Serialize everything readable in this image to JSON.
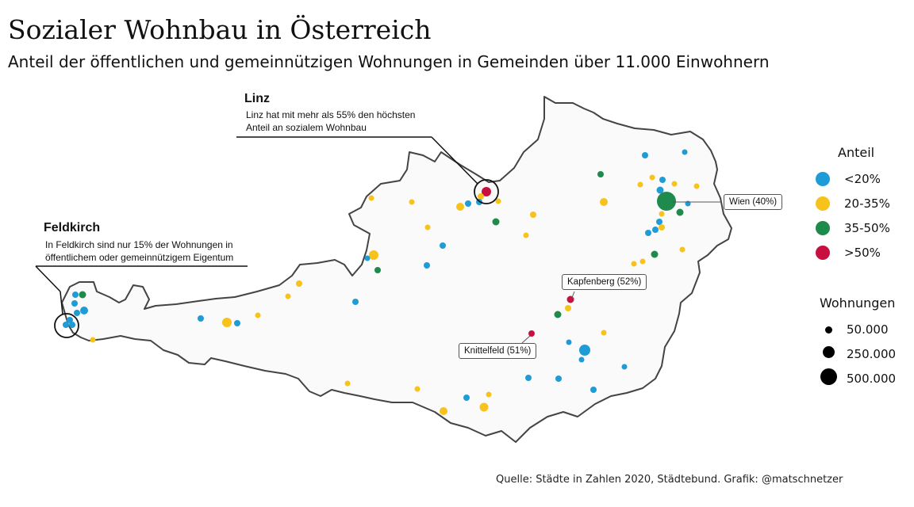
{
  "title": "Sozialer Wohnbau in Österreich",
  "subtitle": "Anteil der öffentlichen und gemeinnützigen Wohnungen in Gemeinden über 11.000 Einwohnern",
  "source": "Quelle: Städte in Zahlen 2020, Städtebund. Grafik: @matschnetzer",
  "colors": {
    "blue": "#1f9bd6",
    "yellow": "#f7c21c",
    "green": "#1e8a4c",
    "red": "#c8103e",
    "outline": "#444444",
    "land": "#fafafa"
  },
  "legend": {
    "share_title": "Anteil",
    "share_items": [
      {
        "label": "<20%",
        "color": "#1f9bd6"
      },
      {
        "label": "20-35%",
        "color": "#f7c21c"
      },
      {
        "label": "35-50%",
        "color": "#1e8a4c"
      },
      {
        "label": ">50%",
        "color": "#c8103e"
      }
    ],
    "size_title": "Wohnungen",
    "size_items": [
      {
        "label": "50.000"
      },
      {
        "label": "250.000"
      },
      {
        "label": "500.000"
      }
    ]
  },
  "annotations": {
    "linz": {
      "heading": "Linz",
      "line1": "Linz hat mit mehr als 55% den höchsten",
      "line2": "Anteil an sozialem Wohnbau"
    },
    "feldkirch": {
      "heading": "Feldkirch",
      "line1": "In Feldkirch sind nur 15% der Wohnungen in",
      "line2": "öffentlichem oder gemeinnützigem Eigentum"
    }
  },
  "labels": {
    "wien": "Wien (40%)",
    "kapfenberg": "Kapfenberg (52%)",
    "knittelfeld": "Knittelfeld (51%)"
  }
}
